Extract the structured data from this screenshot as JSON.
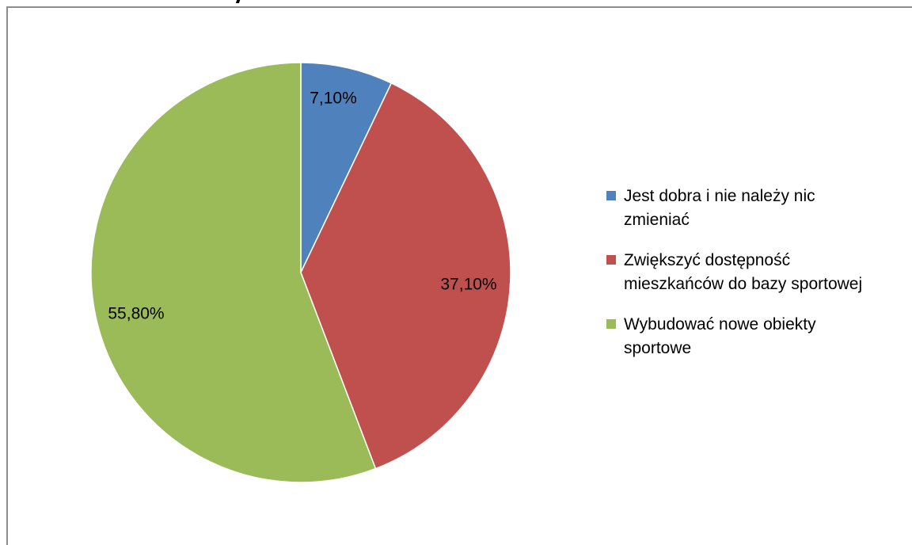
{
  "chart_data": {
    "type": "pie",
    "title": "",
    "slices": [
      {
        "label": "Jest dobra i nie należy nic zmieniać",
        "value": 7.1,
        "display": "7,10%",
        "color": "#4f81bd"
      },
      {
        "label": "Zwiększyć dostępność mieszkańców do bazy sportowej",
        "value": 37.1,
        "display": "37,10%",
        "color": "#c0504d"
      },
      {
        "label": "Wybudować nowe obiekty sportowe",
        "value": 55.8,
        "display": "55,80%",
        "color": "#9bbb59"
      }
    ],
    "legend_position": "right"
  },
  "legend": {
    "items": [
      {
        "line1": "Jest dobra i nie należy nic",
        "line2": "zmieniać",
        "color": "#4f81bd"
      },
      {
        "line1": "Zwiększyć dostępność",
        "line2": "mieszkańców do bazy sportowej",
        "color": "#c0504d"
      },
      {
        "line1": "Wybudować nowe obiekty",
        "line2": "sportowe",
        "color": "#9bbb59"
      }
    ]
  }
}
